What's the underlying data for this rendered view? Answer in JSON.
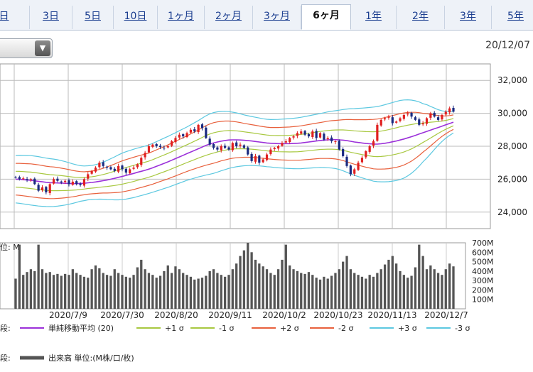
{
  "tabs": [
    {
      "label": "日",
      "active": false
    },
    {
      "label": "3日",
      "active": false
    },
    {
      "label": "5日",
      "active": false
    },
    {
      "label": "10日",
      "active": false
    },
    {
      "label": "1ヶ月",
      "active": false
    },
    {
      "label": "2ヶ月",
      "active": false
    },
    {
      "label": "3ヶ月",
      "active": false
    },
    {
      "label": "6ヶ月",
      "active": true
    },
    {
      "label": "1年",
      "active": false
    },
    {
      "label": "2年",
      "active": false
    },
    {
      "label": "3年",
      "active": false
    },
    {
      "label": "5年",
      "active": false
    }
  ],
  "dropdown": {
    "value": "",
    "arrow_icon": "triangle-down-icon"
  },
  "date_label": "20/12/07",
  "legend1": {
    "prefix": "段:",
    "items": [
      {
        "label": "単純移動平均 (20)",
        "color": "#9b30d9"
      },
      {
        "label": "+1 σ",
        "color": "#a8c840"
      },
      {
        "label": "-1 σ",
        "color": "#a8c840"
      },
      {
        "label": "+2 σ",
        "color": "#e8603c"
      },
      {
        "label": "-2 σ",
        "color": "#e8603c"
      },
      {
        "label": "+3 σ",
        "color": "#5cc8e0"
      },
      {
        "label": "-3 σ",
        "color": "#5cc8e0"
      }
    ]
  },
  "legend2": {
    "prefix": "段:",
    "label": "出来高 単位:(M株/口/枚)",
    "color": "#555555"
  },
  "chart_data": [
    {
      "type": "candlestick",
      "ylim": [
        23000,
        33000
      ],
      "y_ticks": [
        "24,000",
        "26,000",
        "28,000",
        "30,000",
        "32,000"
      ],
      "x_ticks": [
        "2020/7/9",
        "2020/7/30",
        "2020/8/20",
        "2020/9/11",
        "2020/10/2",
        "2020/10/23",
        "2020/11/13",
        "2020/12/7"
      ],
      "grid": true,
      "up_color": "#e02020",
      "down_color": "#1a2a80",
      "closes": [
        26100,
        26000,
        26050,
        25950,
        26000,
        25700,
        25300,
        25500,
        25200,
        25700,
        26000,
        25900,
        25800,
        25900,
        25700,
        25850,
        25700,
        25650,
        26000,
        26300,
        26500,
        26700,
        27000,
        26800,
        26700,
        26600,
        26500,
        26800,
        26600,
        26400,
        26600,
        26700,
        26900,
        27300,
        27600,
        28000,
        28100,
        28000,
        27950,
        27900,
        28000,
        28300,
        28500,
        28700,
        28600,
        28800,
        29000,
        28900,
        29300,
        29100,
        28500,
        28100,
        27900,
        27800,
        28000,
        27900,
        27800,
        28200,
        28000,
        28100,
        27900,
        27500,
        27100,
        27400,
        27000,
        27200,
        27500,
        27800,
        27900,
        28000,
        28200,
        28300,
        28500,
        28600,
        28800,
        28900,
        28700,
        28600,
        28900,
        28500,
        28800,
        28400,
        28500,
        28300,
        28300,
        27800,
        27400,
        26800,
        26300,
        26600,
        27000,
        27300,
        27700,
        28000,
        28300,
        29300,
        29600,
        29700,
        29800,
        29400,
        29500,
        29700,
        29900,
        30000,
        29800,
        29600,
        29300,
        29400,
        29700,
        30000,
        29800,
        29600,
        29900,
        30100,
        30300,
        30100
      ],
      "sma20": [
        26000,
        25990,
        25970,
        25950,
        25930,
        25900,
        25870,
        25840,
        25810,
        25790,
        25780,
        25770,
        25760,
        25750,
        25740,
        25730,
        25730,
        25740,
        25750,
        25780,
        25800,
        25830,
        25870,
        25910,
        25950,
        26000,
        26050,
        26110,
        26170,
        26230,
        26290,
        26350,
        26420,
        26480,
        26540,
        26610,
        26690,
        26780,
        26870,
        26960,
        27050,
        27150,
        27250,
        27350,
        27450,
        27550,
        27650,
        27750,
        27850,
        27950,
        28050,
        28130,
        28200,
        28260,
        28310,
        28350,
        28380,
        28390,
        28390,
        28380,
        28360,
        28340,
        28320,
        28290,
        28260,
        28230,
        28200,
        28180,
        28170,
        28160,
        28160,
        28160,
        28160,
        28170,
        28180,
        28200,
        28230,
        28260,
        28290,
        28320,
        28350,
        28370,
        28390,
        28400,
        28400,
        28390,
        28370,
        28340,
        28300,
        28260,
        28230,
        28200,
        28170,
        28150,
        28130,
        28130,
        28150,
        28180,
        28220,
        28270,
        28320,
        28380,
        28440,
        28510,
        28580,
        28660,
        28740,
        28820,
        28900,
        28980,
        29060,
        29140,
        29220,
        29300,
        29380,
        29460
      ],
      "sigma": [
        480,
        485,
        490,
        495,
        500,
        500,
        500,
        495,
        490,
        485,
        480,
        470,
        455,
        440,
        420,
        400,
        380,
        360,
        350,
        345,
        345,
        350,
        360,
        375,
        395,
        415,
        435,
        455,
        470,
        480,
        485,
        490,
        490,
        490,
        490,
        490,
        495,
        500,
        505,
        510,
        515,
        520,
        525,
        530,
        535,
        540,
        550,
        560,
        570,
        585,
        600,
        610,
        615,
        610,
        600,
        590,
        575,
        560,
        545,
        530,
        515,
        505,
        495,
        490,
        485,
        480,
        480,
        480,
        485,
        490,
        495,
        500,
        505,
        510,
        515,
        520,
        525,
        530,
        535,
        540,
        545,
        555,
        565,
        575,
        585,
        600,
        620,
        640,
        660,
        675,
        690,
        705,
        720,
        735,
        750,
        760,
        770,
        780,
        790,
        795,
        800,
        800,
        790,
        770,
        740,
        700,
        650,
        590,
        540,
        480,
        420,
        360,
        310,
        270,
        240,
        220
      ],
      "annotation_series": [
        "単純移動平均 (20)",
        "±1 σ",
        "±2 σ",
        "±3 σ"
      ]
    },
    {
      "type": "bar",
      "ylim": [
        0,
        700
      ],
      "y_ticks": [
        "100M",
        "200M",
        "300M",
        "400M",
        "500M",
        "600M",
        "700M"
      ],
      "unit_label": "位: M",
      "volumes": [
        320,
        680,
        360,
        390,
        420,
        400,
        680,
        420,
        380,
        390,
        360,
        370,
        350,
        370,
        360,
        420,
        380,
        360,
        340,
        330,
        420,
        460,
        430,
        380,
        360,
        350,
        420,
        380,
        360,
        340,
        330,
        360,
        440,
        520,
        420,
        380,
        360,
        330,
        350,
        400,
        460,
        380,
        450,
        420,
        380,
        360,
        340,
        310,
        320,
        330,
        350,
        400,
        420,
        380,
        360,
        340,
        360,
        420,
        480,
        560,
        620,
        700,
        600,
        520,
        480,
        450,
        420,
        380,
        360,
        420,
        520,
        680,
        460,
        420,
        400,
        380,
        370,
        390,
        360,
        330,
        310,
        340,
        320,
        350,
        380,
        420,
        500,
        560,
        420,
        380,
        360,
        340,
        320,
        360,
        340,
        380,
        420,
        470,
        520,
        560,
        480,
        400,
        360,
        330,
        350,
        440,
        680,
        560,
        420,
        460,
        420,
        380,
        360,
        420,
        480,
        450
      ]
    }
  ]
}
